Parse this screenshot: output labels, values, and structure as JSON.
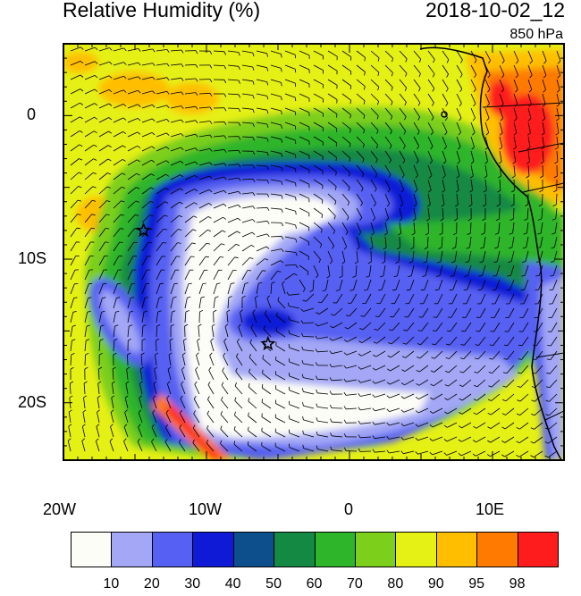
{
  "header": {
    "title": "Relative Humidity (%)",
    "datetime": "2018-10-02_12",
    "level": "850 hPa"
  },
  "map": {
    "x_ticks": [
      "20W",
      "10W",
      "0",
      "10E"
    ],
    "y_ticks": [
      "0",
      "10S",
      "20S"
    ],
    "lon_range": [
      -20,
      15
    ],
    "lat_range": [
      -24,
      5
    ],
    "markers": [
      {
        "type": "star",
        "lon": -14.4,
        "lat": -8.0
      },
      {
        "type": "star",
        "lon": -5.7,
        "lat": -15.9
      }
    ]
  },
  "colorbar": {
    "labels": [
      "10",
      "20",
      "30",
      "40",
      "50",
      "60",
      "70",
      "80",
      "90",
      "95",
      "98"
    ],
    "colors": [
      "#fdfdf7",
      "#a3a7f5",
      "#5660f2",
      "#0f1ad6",
      "#0c4f8c",
      "#138944",
      "#2fb52a",
      "#7ccf1a",
      "#e5f015",
      "#ffbf00",
      "#ff7a00",
      "#ff1c1c"
    ]
  }
}
